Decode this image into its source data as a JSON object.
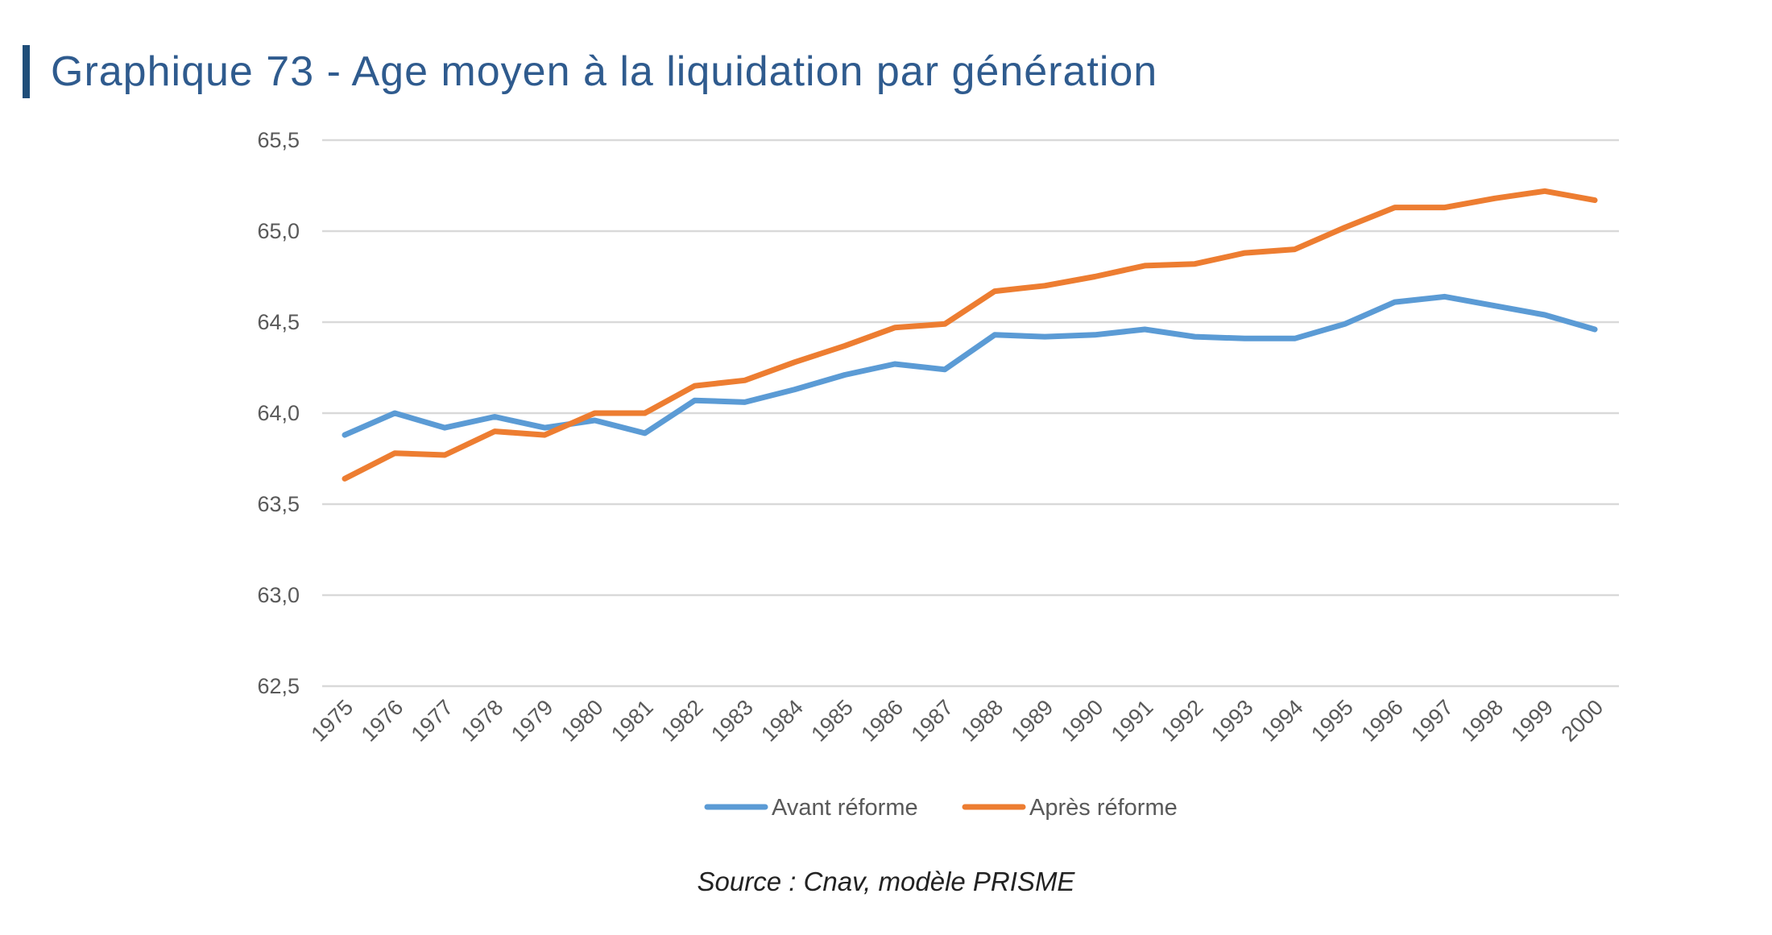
{
  "header": {
    "title": "Graphique 73 - Age moyen à la liquidation par génération"
  },
  "footer": {
    "source": "Source : Cnav, modèle PRISME"
  },
  "colors": {
    "title": "#2f5b8e",
    "title_bar": "#1f4e79",
    "series_avant": "#5b9bd5",
    "series_apres": "#ed7d31",
    "grid": "#d9d9d9",
    "tick_text": "#595959"
  },
  "chart_data": {
    "type": "line",
    "title": "Graphique 73 - Age moyen à la liquidation par génération",
    "xlabel": "",
    "ylabel": "",
    "categories": [
      "1975",
      "1976",
      "1977",
      "1978",
      "1979",
      "1980",
      "1981",
      "1982",
      "1983",
      "1984",
      "1985",
      "1986",
      "1987",
      "1988",
      "1989",
      "1990",
      "1991",
      "1992",
      "1993",
      "1994",
      "1995",
      "1996",
      "1997",
      "1998",
      "1999",
      "2000"
    ],
    "ylim": [
      62.5,
      65.5
    ],
    "yticks": [
      62.5,
      63.0,
      63.5,
      64.0,
      64.5,
      65.0,
      65.5
    ],
    "ytick_labels": [
      "62,5",
      "63,0",
      "63,5",
      "64,0",
      "64,5",
      "65,0",
      "65,5"
    ],
    "grid": true,
    "legend_position": "bottom",
    "series": [
      {
        "name": "Avant réforme",
        "color": "#5b9bd5",
        "values": [
          63.88,
          64.0,
          63.92,
          63.98,
          63.92,
          63.96,
          63.89,
          64.07,
          64.06,
          64.13,
          64.21,
          64.27,
          64.24,
          64.43,
          64.42,
          64.43,
          64.46,
          64.42,
          64.41,
          64.41,
          64.49,
          64.61,
          64.64,
          64.59,
          64.54,
          64.46
        ]
      },
      {
        "name": "Après réforme",
        "color": "#ed7d31",
        "values": [
          63.64,
          63.78,
          63.77,
          63.9,
          63.88,
          64.0,
          64.0,
          64.15,
          64.18,
          64.28,
          64.37,
          64.47,
          64.49,
          64.67,
          64.7,
          64.75,
          64.81,
          64.82,
          64.88,
          64.9,
          65.02,
          65.13,
          65.13,
          65.18,
          65.22,
          65.17
        ]
      }
    ]
  }
}
